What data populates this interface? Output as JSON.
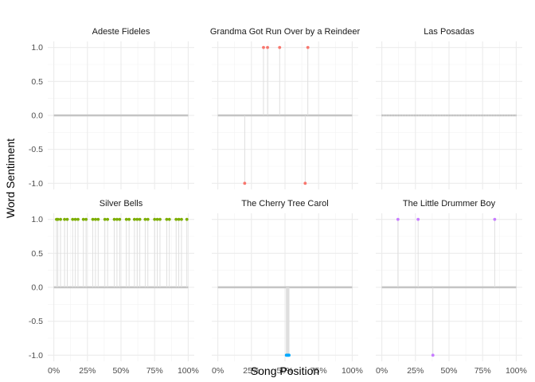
{
  "chart_data": {
    "type": "faceted-lollipop",
    "xlabel": "Song Position",
    "ylabel": "Word Sentiment",
    "x_range": [
      0,
      100
    ],
    "x_ticks": [
      0,
      25,
      50,
      75,
      100
    ],
    "x_tick_labels": [
      "0%",
      "25%",
      "50%",
      "75%",
      "100%"
    ],
    "y_range": [
      -1.0,
      1.0
    ],
    "y_ticks": [
      1.0,
      0.5,
      0.0,
      -0.5,
      -1.0
    ],
    "y_tick_labels": [
      "1.0",
      "0.5",
      "0.0",
      "-0.5",
      "-1.0"
    ],
    "grid": true,
    "facets": [
      {
        "title": "Adeste Fideles",
        "color": "#f8766d",
        "baseline": {
          "from": 0,
          "to": 100,
          "style": "thick"
        },
        "points": []
      },
      {
        "title": "Grandma Got Run Over by a Reindeer",
        "color": "#f8766d",
        "baseline": {
          "from": 0,
          "to": 100,
          "style": "thick"
        },
        "points": [
          {
            "x": 20,
            "y": -1.0
          },
          {
            "x": 34,
            "y": 1.0
          },
          {
            "x": 37,
            "y": 1.0
          },
          {
            "x": 46,
            "y": 1.0
          },
          {
            "x": 65,
            "y": -1.0
          },
          {
            "x": 67,
            "y": 1.0
          }
        ]
      },
      {
        "title": "Las Posadas",
        "color": "#a3a500",
        "baseline": {
          "from": 0,
          "to": 100,
          "style": "dotted"
        },
        "points": []
      },
      {
        "title": "Silver Bells",
        "color": "#7cae00",
        "baseline": {
          "from": 0,
          "to": 100,
          "style": "thick"
        },
        "points": [
          {
            "x": 2,
            "y": 1.0
          },
          {
            "x": 3,
            "y": 1.0
          },
          {
            "x": 5,
            "y": 1.0
          },
          {
            "x": 8,
            "y": 1.0
          },
          {
            "x": 10,
            "y": 1.0
          },
          {
            "x": 14,
            "y": 1.0
          },
          {
            "x": 16,
            "y": 1.0
          },
          {
            "x": 18,
            "y": 1.0
          },
          {
            "x": 22,
            "y": 1.0
          },
          {
            "x": 24,
            "y": 1.0
          },
          {
            "x": 29,
            "y": 1.0
          },
          {
            "x": 31,
            "y": 1.0
          },
          {
            "x": 33,
            "y": 1.0
          },
          {
            "x": 38,
            "y": 1.0
          },
          {
            "x": 40,
            "y": 1.0
          },
          {
            "x": 45,
            "y": 1.0
          },
          {
            "x": 47,
            "y": 1.0
          },
          {
            "x": 49,
            "y": 1.0
          },
          {
            "x": 54,
            "y": 1.0
          },
          {
            "x": 56,
            "y": 1.0
          },
          {
            "x": 60,
            "y": 1.0
          },
          {
            "x": 62,
            "y": 1.0
          },
          {
            "x": 64,
            "y": 1.0
          },
          {
            "x": 68,
            "y": 1.0
          },
          {
            "x": 70,
            "y": 1.0
          },
          {
            "x": 75,
            "y": 1.0
          },
          {
            "x": 77,
            "y": 1.0
          },
          {
            "x": 79,
            "y": 1.0
          },
          {
            "x": 84,
            "y": 1.0
          },
          {
            "x": 86,
            "y": 1.0
          },
          {
            "x": 91,
            "y": 1.0
          },
          {
            "x": 93,
            "y": 1.0
          },
          {
            "x": 95,
            "y": 1.0
          },
          {
            "x": 99,
            "y": 1.0
          }
        ]
      },
      {
        "title": "The Cherry Tree Carol",
        "color": "#00a9ff",
        "baseline": {
          "from": 0,
          "to": 100,
          "style": "thick"
        },
        "points": [
          {
            "x": 51,
            "y": -1.0
          },
          {
            "x": 51.5,
            "y": -1.0
          },
          {
            "x": 52,
            "y": -1.0
          },
          {
            "x": 52.5,
            "y": -1.0
          },
          {
            "x": 53,
            "y": -1.0
          }
        ]
      },
      {
        "title": "The Little Drummer Boy",
        "color": "#c77cff",
        "baseline": {
          "from": 0,
          "to": 100,
          "style": "thick"
        },
        "points": [
          {
            "x": 12,
            "y": 1.0
          },
          {
            "x": 27,
            "y": 1.0
          },
          {
            "x": 38,
            "y": -1.0
          },
          {
            "x": 84,
            "y": 1.0
          }
        ]
      }
    ]
  }
}
